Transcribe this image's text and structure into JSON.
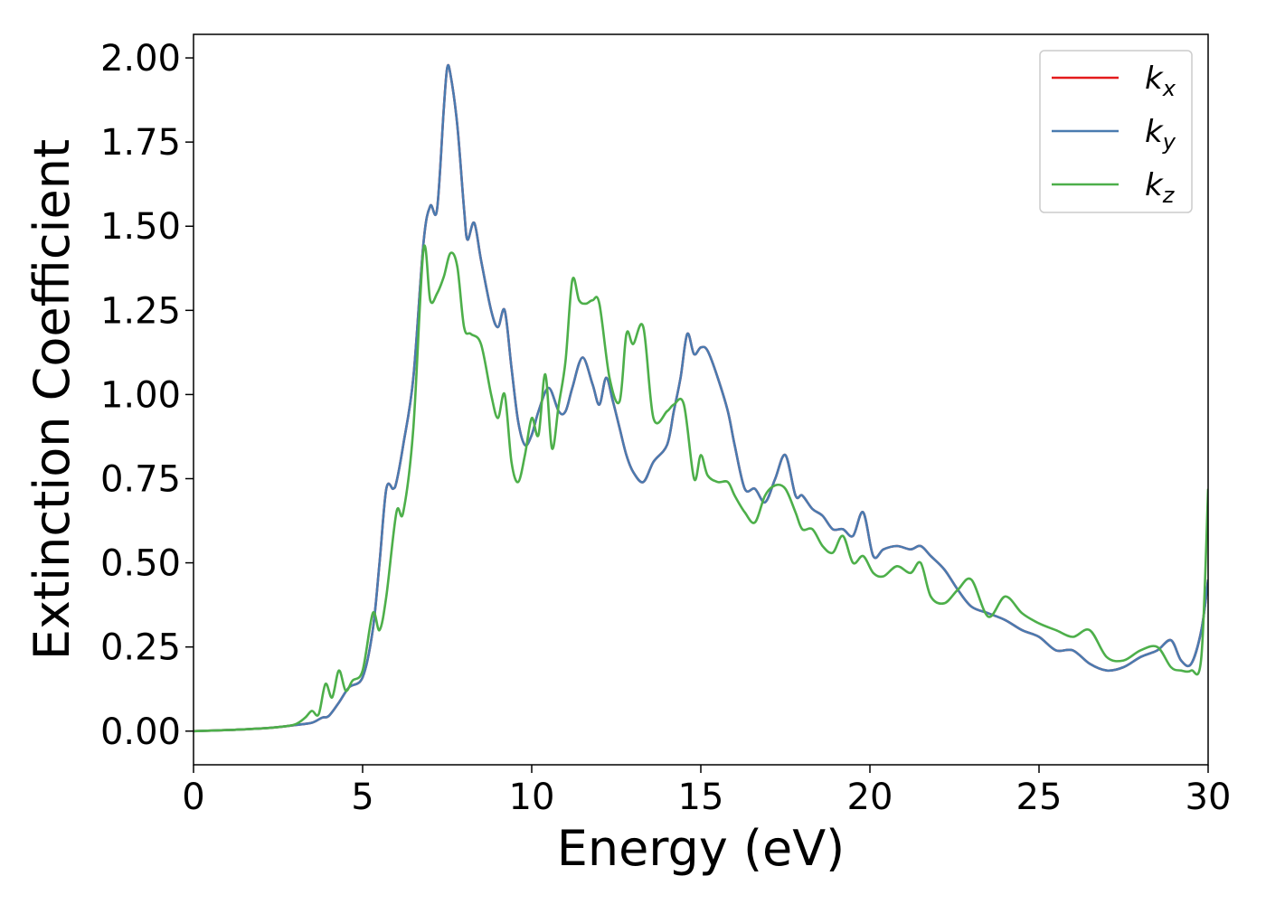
{
  "chart_data": {
    "type": "line",
    "xlabel": "Energy (eV)",
    "ylabel": "Extinction Coefficient",
    "xlim": [
      0,
      30
    ],
    "ylim": [
      -0.1,
      2.07
    ],
    "xticks": [
      "0",
      "5",
      "10",
      "15",
      "20",
      "25",
      "30"
    ],
    "yticks": [
      "0.00",
      "0.25",
      "0.50",
      "0.75",
      "1.00",
      "1.25",
      "1.50",
      "1.75",
      "2.00"
    ],
    "grid": false,
    "legend_position": "top-right",
    "series": [
      {
        "name": "k_x",
        "label_base": "k",
        "label_sub": "x",
        "color": "#e41a1c",
        "x": [
          0,
          1,
          2,
          2.5,
          3,
          3.5,
          3.8,
          4,
          4.3,
          4.6,
          5,
          5.3,
          5.5,
          5.7,
          5.9,
          6,
          6.2,
          6.5,
          6.8,
          7,
          7.2,
          7.4,
          7.5,
          7.6,
          7.8,
          8,
          8.1,
          8.3,
          8.5,
          8.8,
          9,
          9.2,
          9.4,
          9.6,
          9.8,
          10,
          10.2,
          10.5,
          10.8,
          11,
          11.2,
          11.5,
          11.8,
          12,
          12.2,
          12.4,
          12.6,
          12.8,
          13,
          13.3,
          13.6,
          14,
          14.2,
          14.4,
          14.6,
          14.8,
          15,
          15.2,
          15.5,
          15.8,
          16,
          16.3,
          16.6,
          16.9,
          17.2,
          17.5,
          17.8,
          18,
          18.3,
          18.6,
          18.9,
          19.2,
          19.5,
          19.8,
          20.1,
          20.4,
          20.8,
          21.2,
          21.5,
          21.8,
          22.2,
          22.6,
          23,
          23.5,
          24,
          24.5,
          25,
          25.5,
          26,
          26.5,
          27,
          27.5,
          28,
          28.5,
          28.9,
          29.2,
          29.5,
          29.8,
          30
        ],
        "y": [
          0,
          0.003,
          0.008,
          0.012,
          0.018,
          0.025,
          0.04,
          0.045,
          0.085,
          0.13,
          0.16,
          0.3,
          0.5,
          0.72,
          0.72,
          0.74,
          0.85,
          1.05,
          1.45,
          1.56,
          1.55,
          1.85,
          1.97,
          1.95,
          1.8,
          1.55,
          1.46,
          1.51,
          1.4,
          1.25,
          1.2,
          1.25,
          1.08,
          0.92,
          0.85,
          0.88,
          0.95,
          1.02,
          0.95,
          0.95,
          1.02,
          1.11,
          1.03,
          0.97,
          1.05,
          0.98,
          0.9,
          0.82,
          0.77,
          0.74,
          0.8,
          0.85,
          0.95,
          1.05,
          1.18,
          1.12,
          1.14,
          1.13,
          1.05,
          0.95,
          0.85,
          0.72,
          0.72,
          0.68,
          0.75,
          0.82,
          0.7,
          0.7,
          0.66,
          0.64,
          0.6,
          0.6,
          0.58,
          0.65,
          0.52,
          0.54,
          0.55,
          0.54,
          0.55,
          0.52,
          0.48,
          0.42,
          0.37,
          0.35,
          0.33,
          0.3,
          0.28,
          0.24,
          0.24,
          0.2,
          0.18,
          0.19,
          0.22,
          0.24,
          0.27,
          0.21,
          0.2,
          0.3,
          0.45
        ]
      },
      {
        "name": "k_y",
        "label_base": "k",
        "label_sub": "y",
        "color": "#4a7bb0",
        "x": [
          0,
          1,
          2,
          2.5,
          3,
          3.5,
          3.8,
          4,
          4.3,
          4.6,
          5,
          5.3,
          5.5,
          5.7,
          5.9,
          6,
          6.2,
          6.5,
          6.8,
          7,
          7.2,
          7.4,
          7.5,
          7.6,
          7.8,
          8,
          8.1,
          8.3,
          8.5,
          8.8,
          9,
          9.2,
          9.4,
          9.6,
          9.8,
          10,
          10.2,
          10.5,
          10.8,
          11,
          11.2,
          11.5,
          11.8,
          12,
          12.2,
          12.4,
          12.6,
          12.8,
          13,
          13.3,
          13.6,
          14,
          14.2,
          14.4,
          14.6,
          14.8,
          15,
          15.2,
          15.5,
          15.8,
          16,
          16.3,
          16.6,
          16.9,
          17.2,
          17.5,
          17.8,
          18,
          18.3,
          18.6,
          18.9,
          19.2,
          19.5,
          19.8,
          20.1,
          20.4,
          20.8,
          21.2,
          21.5,
          21.8,
          22.2,
          22.6,
          23,
          23.5,
          24,
          24.5,
          25,
          25.5,
          26,
          26.5,
          27,
          27.5,
          28,
          28.5,
          28.9,
          29.2,
          29.5,
          29.8,
          30
        ],
        "y": [
          0,
          0.003,
          0.008,
          0.012,
          0.018,
          0.025,
          0.04,
          0.045,
          0.085,
          0.13,
          0.16,
          0.3,
          0.5,
          0.72,
          0.72,
          0.74,
          0.85,
          1.05,
          1.45,
          1.56,
          1.55,
          1.85,
          1.97,
          1.95,
          1.8,
          1.55,
          1.46,
          1.51,
          1.4,
          1.25,
          1.2,
          1.25,
          1.08,
          0.92,
          0.85,
          0.88,
          0.95,
          1.02,
          0.95,
          0.95,
          1.02,
          1.11,
          1.03,
          0.97,
          1.05,
          0.98,
          0.9,
          0.82,
          0.77,
          0.74,
          0.8,
          0.85,
          0.95,
          1.05,
          1.18,
          1.12,
          1.14,
          1.13,
          1.05,
          0.95,
          0.85,
          0.72,
          0.72,
          0.68,
          0.75,
          0.82,
          0.7,
          0.7,
          0.66,
          0.64,
          0.6,
          0.6,
          0.58,
          0.65,
          0.52,
          0.54,
          0.55,
          0.54,
          0.55,
          0.52,
          0.48,
          0.42,
          0.37,
          0.35,
          0.33,
          0.3,
          0.28,
          0.24,
          0.24,
          0.2,
          0.18,
          0.19,
          0.22,
          0.24,
          0.27,
          0.21,
          0.2,
          0.3,
          0.45
        ]
      },
      {
        "name": "k_z",
        "label_base": "k",
        "label_sub": "z",
        "color": "#4daf4a",
        "x": [
          0,
          1,
          2,
          2.5,
          3,
          3.3,
          3.5,
          3.7,
          3.9,
          4.1,
          4.3,
          4.5,
          4.7,
          5,
          5.3,
          5.5,
          5.7,
          6,
          6.2,
          6.5,
          6.8,
          7,
          7.2,
          7.4,
          7.6,
          7.8,
          8,
          8.2,
          8.5,
          8.8,
          9,
          9.2,
          9.4,
          9.6,
          9.8,
          10,
          10.2,
          10.4,
          10.6,
          10.8,
          11,
          11.2,
          11.4,
          11.6,
          11.8,
          12,
          12.3,
          12.6,
          12.8,
          13,
          13.3,
          13.6,
          14,
          14.2,
          14.5,
          14.8,
          15,
          15.2,
          15.5,
          15.8,
          16,
          16.3,
          16.6,
          16.9,
          17.2,
          17.5,
          17.8,
          18,
          18.3,
          18.6,
          18.9,
          19.2,
          19.5,
          19.8,
          20.1,
          20.4,
          20.8,
          21.2,
          21.5,
          21.8,
          22.2,
          22.6,
          23,
          23.5,
          24,
          24.5,
          25,
          25.5,
          26,
          26.5,
          27,
          27.5,
          28,
          28.5,
          28.9,
          29.2,
          29.5,
          29.8,
          30
        ],
        "y": [
          0,
          0.003,
          0.008,
          0.012,
          0.02,
          0.04,
          0.06,
          0.05,
          0.14,
          0.1,
          0.18,
          0.12,
          0.15,
          0.18,
          0.35,
          0.3,
          0.4,
          0.65,
          0.65,
          0.9,
          1.43,
          1.28,
          1.3,
          1.35,
          1.42,
          1.38,
          1.2,
          1.18,
          1.15,
          1.0,
          0.93,
          1.0,
          0.8,
          0.74,
          0.82,
          0.93,
          0.88,
          1.06,
          0.84,
          0.97,
          1.1,
          1.34,
          1.28,
          1.27,
          1.28,
          1.27,
          1.05,
          0.98,
          1.18,
          1.15,
          1.2,
          0.93,
          0.95,
          0.97,
          0.97,
          0.75,
          0.82,
          0.76,
          0.74,
          0.74,
          0.7,
          0.65,
          0.62,
          0.7,
          0.73,
          0.72,
          0.65,
          0.6,
          0.6,
          0.55,
          0.53,
          0.58,
          0.5,
          0.52,
          0.47,
          0.46,
          0.49,
          0.47,
          0.5,
          0.4,
          0.38,
          0.42,
          0.45,
          0.34,
          0.4,
          0.35,
          0.32,
          0.3,
          0.28,
          0.3,
          0.22,
          0.21,
          0.24,
          0.25,
          0.19,
          0.18,
          0.18,
          0.22,
          0.72
        ]
      }
    ]
  }
}
